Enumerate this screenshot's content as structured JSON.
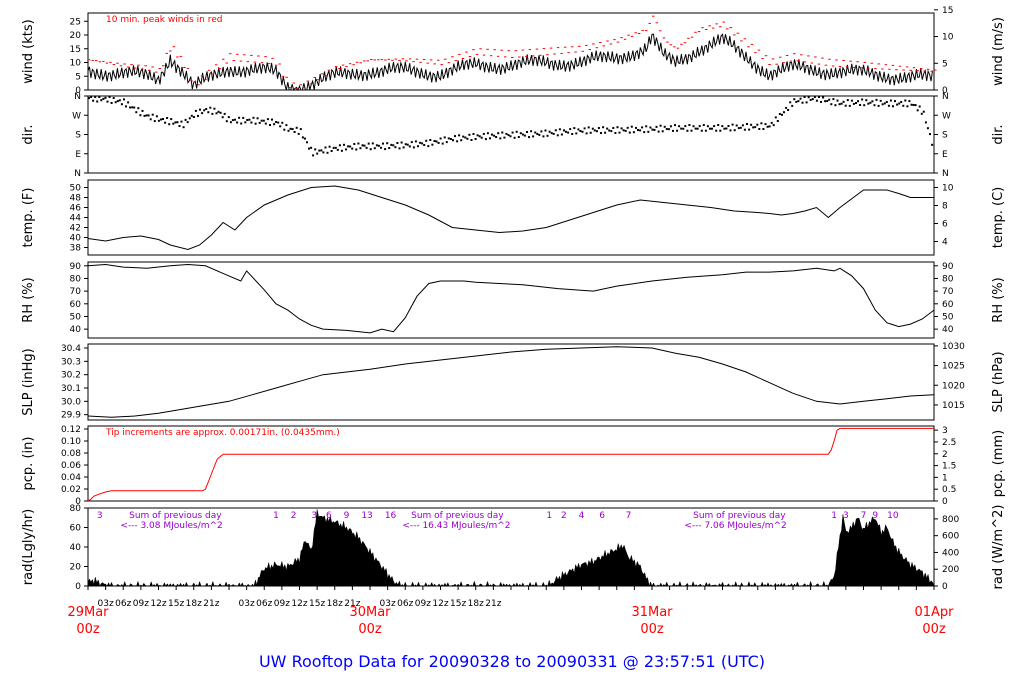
{
  "title": "UW Rooftop Data for 20090328  to  20090331 @ 23:57:51  (UTC)",
  "colors": {
    "axis": "#000000",
    "series": "#000000",
    "peak": "#ff0000",
    "precip": "#ff0000",
    "rad_text": "#9900cc",
    "day_label": "#ff0000",
    "title": "#0000ff"
  },
  "x_axis": {
    "hour_ticks": [
      "03z",
      "06z",
      "09z",
      "12z",
      "15z",
      "18z",
      "21z",
      "03z",
      "06z",
      "09z",
      "12z",
      "15z",
      "18z",
      "21z",
      "03z",
      "06z",
      "09z",
      "12z",
      "15z",
      "18z",
      "21z"
    ],
    "day_labels": [
      {
        "date": "29Mar",
        "hour": "00z"
      },
      {
        "date": "30Mar",
        "hour": "00z"
      },
      {
        "date": "31Mar",
        "hour": "00z"
      },
      {
        "date": "01Apr",
        "hour": "00z"
      }
    ]
  },
  "chart_data": [
    {
      "id": "wind",
      "type": "line",
      "ylabel_left": "wind (kts)",
      "ylabel_right": "wind (m/s)",
      "yticks_left": [
        "0",
        "5",
        "10",
        "15",
        "20",
        "25"
      ],
      "yticks_right": [
        "0",
        "5",
        "10",
        "15"
      ],
      "ylim": [
        0,
        28
      ],
      "annotation": "10 min. peak winds in red",
      "series": [
        {
          "role": "sustained",
          "x_hours": [
            0,
            6,
            10,
            12,
            14,
            16,
            18,
            24,
            30,
            32,
            34,
            36,
            42,
            48,
            54,
            60,
            66,
            72,
            78,
            84,
            90,
            95,
            96,
            98,
            100,
            104,
            108,
            112,
            116,
            120,
            126,
            132,
            138,
            144
          ],
          "values": [
            7,
            6,
            5,
            4,
            12,
            7,
            1,
            8,
            7,
            6,
            1,
            1,
            5,
            7,
            7,
            6,
            9,
            9,
            10,
            10,
            12,
            15,
            19,
            12,
            10,
            15,
            18,
            12,
            6,
            8,
            7,
            6,
            5,
            4
          ]
        },
        {
          "role": "peak",
          "x_hours": [
            0,
            6,
            10,
            12,
            14,
            16,
            18,
            24,
            30,
            32,
            34,
            36,
            42,
            48,
            54,
            60,
            66,
            72,
            78,
            84,
            90,
            95,
            96,
            98,
            100,
            104,
            108,
            112,
            116,
            120,
            126,
            132,
            138,
            144
          ],
          "values": [
            11,
            9,
            8,
            7,
            16,
            10,
            2,
            12,
            11,
            10,
            2,
            1,
            8,
            11,
            11,
            10,
            14,
            13,
            14,
            15,
            18,
            22,
            27,
            18,
            15,
            22,
            24,
            17,
            10,
            12,
            10,
            9,
            8,
            7
          ]
        }
      ]
    },
    {
      "id": "dir",
      "type": "scatter",
      "ylabel_left": "dir.",
      "ylabel_right": "dir.",
      "yticks_left": [
        "N",
        "E",
        "S",
        "W",
        "N"
      ],
      "yticks_right": [
        "N",
        "E",
        "S",
        "W",
        "N"
      ],
      "ylim": [
        0,
        360
      ],
      "x_hours": [
        0,
        3,
        6,
        8,
        10,
        12,
        14,
        16,
        18,
        20,
        22,
        24,
        28,
        32,
        34,
        36,
        38,
        42,
        46,
        50,
        54,
        58,
        62,
        66,
        70,
        74,
        78,
        82,
        86,
        90,
        96,
        100,
        104,
        108,
        112,
        116,
        120,
        124,
        126,
        128,
        132,
        136,
        140,
        142,
        144
      ],
      "values": [
        355,
        350,
        335,
        300,
        270,
        255,
        245,
        230,
        280,
        300,
        290,
        250,
        250,
        240,
        210,
        200,
        100,
        120,
        130,
        130,
        135,
        145,
        165,
        175,
        180,
        185,
        190,
        200,
        205,
        205,
        210,
        215,
        215,
        215,
        220,
        225,
        340,
        355,
        340,
        330,
        335,
        330,
        330,
        290,
        100
      ]
    },
    {
      "id": "temp",
      "type": "line",
      "ylabel_left": "temp. (F)",
      "ylabel_right": "temp. (C)",
      "yticks_left": [
        "38",
        "40",
        "42",
        "44",
        "46",
        "48",
        "50"
      ],
      "yticks_right": [
        "4",
        "6",
        "8",
        "10"
      ],
      "ylim": [
        36.5,
        51.5
      ],
      "x_hours": [
        0,
        3,
        6,
        9,
        12,
        14,
        17,
        19,
        21,
        23,
        25,
        27,
        30,
        34,
        38,
        42,
        46,
        50,
        54,
        58,
        62,
        66,
        70,
        74,
        78,
        82,
        86,
        90,
        94,
        98,
        102,
        106,
        110,
        114,
        116,
        118,
        120,
        122,
        124,
        126,
        128,
        132,
        136,
        138,
        140,
        144
      ],
      "values": [
        39.8,
        39.3,
        40,
        40.3,
        39.6,
        38.5,
        37.6,
        38.5,
        40.5,
        43,
        41.5,
        44,
        46.5,
        48.5,
        50,
        50.3,
        49.5,
        48,
        46.5,
        44.5,
        42,
        41.5,
        41,
        41.3,
        42,
        43.5,
        45,
        46.5,
        47.5,
        47,
        46.5,
        46,
        45.3,
        45,
        44.8,
        44.5,
        44.8,
        45.3,
        46,
        44,
        46,
        49.5,
        49.5,
        48.8,
        48,
        48
      ]
    },
    {
      "id": "rh",
      "type": "line",
      "ylabel_left": "RH (%)",
      "ylabel_right": "RH (%)",
      "yticks_left": [
        "40",
        "50",
        "60",
        "70",
        "80",
        "90"
      ],
      "yticks_right": [
        "40",
        "50",
        "60",
        "70",
        "80",
        "90"
      ],
      "ylim": [
        33,
        93
      ],
      "x_hours": [
        0,
        3,
        6,
        10,
        14,
        17,
        20,
        23,
        26,
        27,
        30,
        32,
        34,
        36,
        38,
        40,
        44,
        48,
        50,
        52,
        54,
        56,
        58,
        60,
        62,
        64,
        66,
        70,
        74,
        80,
        86,
        90,
        96,
        102,
        108,
        112,
        116,
        120,
        124,
        127,
        128,
        130,
        132,
        134,
        136,
        138,
        140,
        142,
        144
      ],
      "values": [
        90,
        91,
        89,
        88,
        90,
        91,
        90,
        84,
        78,
        86,
        71,
        60,
        55,
        48,
        43,
        40,
        39,
        37,
        40,
        38,
        49,
        66,
        76,
        78,
        78,
        78,
        77,
        76,
        75,
        72,
        70,
        74,
        78,
        81,
        83,
        85,
        85,
        86,
        88,
        86,
        88,
        82,
        72,
        55,
        45,
        42,
        44,
        48,
        55
      ]
    },
    {
      "id": "slp",
      "type": "line",
      "ylabel_left": "SLP (inHg)",
      "ylabel_right": "SLP (hPa)",
      "yticks_left": [
        "29.9",
        "30.0",
        "30.1",
        "30.2",
        "30.3",
        "30.4"
      ],
      "yticks_right": [
        "1015",
        "1020",
        "1025",
        "1030"
      ],
      "ylim": [
        29.86,
        30.43
      ],
      "x_hours": [
        0,
        4,
        8,
        12,
        16,
        20,
        24,
        28,
        32,
        36,
        40,
        44,
        48,
        54,
        60,
        66,
        72,
        78,
        84,
        90,
        96,
        100,
        104,
        108,
        112,
        116,
        120,
        124,
        128,
        132,
        136,
        140,
        144
      ],
      "values": [
        29.89,
        29.88,
        29.89,
        29.91,
        29.94,
        29.97,
        30.0,
        30.05,
        30.1,
        30.15,
        30.2,
        30.22,
        30.24,
        30.28,
        30.31,
        30.34,
        30.37,
        30.39,
        30.4,
        30.41,
        30.4,
        30.36,
        30.33,
        30.28,
        30.22,
        30.14,
        30.06,
        30.0,
        29.98,
        30.0,
        30.02,
        30.04,
        30.05
      ]
    },
    {
      "id": "pcp",
      "type": "area",
      "ylabel_left": "pcp. (in)",
      "ylabel_right": "pcp. (mm)",
      "yticks_left": [
        "0",
        "0.02",
        "0.04",
        "0.06",
        "0.08",
        "0.10",
        "0.12"
      ],
      "yticks_right": [
        "0",
        "0.5",
        "1",
        "1.5",
        "2",
        "2.5",
        "3"
      ],
      "ylim": [
        0,
        0.125
      ],
      "annotation": "Tip increments are approx. 0.00171in. (0.0435mm.)",
      "x_hours": [
        0,
        0.5,
        1,
        2,
        3,
        4,
        19.5,
        20,
        21,
        22,
        23,
        24,
        126,
        126.5,
        127,
        127.5,
        128,
        144
      ],
      "values": [
        0,
        0.003,
        0.008,
        0.012,
        0.015,
        0.017,
        0.017,
        0.02,
        0.045,
        0.07,
        0.078,
        0.078,
        0.078,
        0.085,
        0.1,
        0.118,
        0.121,
        0.121
      ]
    },
    {
      "id": "rad",
      "type": "area",
      "ylabel_left": "rad(Lgly/hr)",
      "ylabel_right": "rad (W/m^2)",
      "yticks_left": [
        "0",
        "20",
        "40",
        "60",
        "80"
      ],
      "yticks_right": [
        "0",
        "200",
        "400",
        "600",
        "800"
      ],
      "ylim": [
        0,
        80
      ],
      "hour_marks_day1": [
        "3",
        "1",
        "2",
        "3",
        "6",
        "9",
        "13",
        "16"
      ],
      "hour_marks_day2": [
        "1",
        "2",
        "4",
        "6",
        "7"
      ],
      "hour_marks_day3": [
        "1",
        "3",
        "7",
        "9",
        "10"
      ],
      "sums": [
        {
          "label": "Sum of previous day",
          "value": "<--- 3.08 MJoules/m^2"
        },
        {
          "label": "Sum of previous day",
          "value": "<--- 16.43 MJoules/m^2"
        },
        {
          "label": "Sum of previous day",
          "value": "<--- 7.06 MJoules/m^2"
        }
      ],
      "x_hours": [
        0,
        1,
        2,
        3,
        4,
        28,
        28.5,
        29,
        30,
        32,
        34,
        36,
        37,
        38,
        39,
        40,
        41,
        42,
        44,
        46,
        48,
        50,
        52,
        53,
        54,
        78,
        79,
        80,
        82,
        84,
        86,
        88,
        90,
        91,
        92,
        94,
        95,
        96,
        126,
        127,
        128,
        128.5,
        129,
        130,
        131,
        132,
        133,
        134,
        135,
        136,
        137,
        138,
        139,
        140,
        141,
        142,
        143,
        144
      ],
      "values": [
        4,
        6,
        3,
        1,
        0,
        0,
        2,
        8,
        18,
        22,
        20,
        28,
        48,
        36,
        75,
        70,
        68,
        66,
        60,
        50,
        35,
        20,
        5,
        1,
        0,
        0,
        3,
        8,
        15,
        22,
        25,
        32,
        38,
        42,
        30,
        20,
        8,
        0,
        0,
        10,
        50,
        72,
        55,
        60,
        70,
        58,
        65,
        70,
        55,
        60,
        45,
        35,
        28,
        22,
        18,
        14,
        8,
        3
      ]
    }
  ]
}
